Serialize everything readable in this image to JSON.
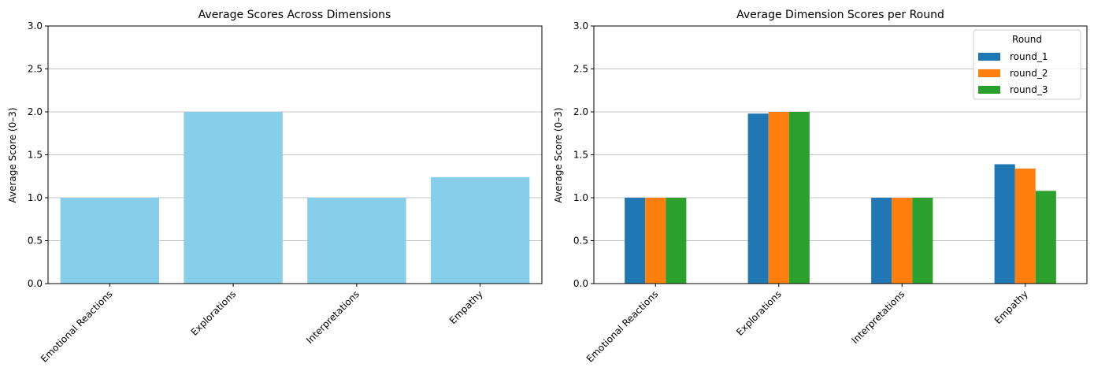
{
  "chart_data": [
    {
      "type": "bar",
      "title": "Average Scores Across Dimensions",
      "xlabel": "",
      "ylabel": "Average Score (0–3)",
      "ylim": [
        0,
        3
      ],
      "yticks": [
        "0.0",
        "0.5",
        "1.0",
        "1.5",
        "2.0",
        "2.5",
        "3.0"
      ],
      "grid": "y",
      "categories": [
        "Emotional Reactions",
        "Explorations",
        "Interpretations",
        "Empathy"
      ],
      "values": [
        1.0,
        2.0,
        1.0,
        1.24
      ],
      "color": "#87ceeb"
    },
    {
      "type": "bar",
      "title": "Average Dimension Scores per Round",
      "xlabel": "",
      "ylabel": "Average Score (0–3)",
      "ylim": [
        0,
        3
      ],
      "yticks": [
        "0.0",
        "0.5",
        "1.0",
        "1.5",
        "2.0",
        "2.5",
        "3.0"
      ],
      "grid": "y",
      "categories": [
        "Emotional Reactions",
        "Explorations",
        "Interpretations",
        "Empathy"
      ],
      "legend": {
        "title": "Round",
        "placement": "top-right"
      },
      "series": [
        {
          "name": "round_1",
          "color": "#1f77b4",
          "values": [
            1.0,
            1.98,
            1.0,
            1.39
          ]
        },
        {
          "name": "round_2",
          "color": "#ff7f0e",
          "values": [
            1.0,
            2.0,
            1.0,
            1.34
          ]
        },
        {
          "name": "round_3",
          "color": "#2ca02c",
          "values": [
            1.0,
            2.0,
            1.0,
            1.08
          ]
        }
      ]
    }
  ]
}
